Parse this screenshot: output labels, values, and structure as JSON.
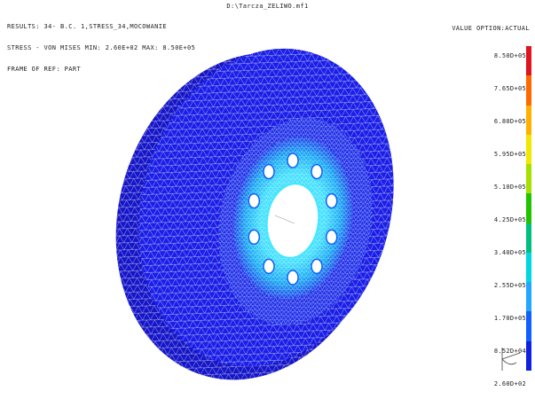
{
  "header": {
    "file_title": "D:\\Tarcza_ZELIWO.mf1",
    "lines": [
      "RESULTS: 34- B.C. 1,STRESS_34,MOCOWANIE",
      "STRESS - VON MISES MIN: 2.60E+02 MAX: 8.50E+05",
      "FRAME OF REF: PART"
    ],
    "value_option": "VALUE OPTION:ACTUAL"
  },
  "legend": {
    "values": [
      "8.50D+05",
      "7.65D+05",
      "6.80D+05",
      "5.95D+05",
      "5.10D+05",
      "4.25D+05",
      "3.40D+05",
      "2.55D+05",
      "1.70D+05",
      "8.52D+04",
      "2.60D+02"
    ],
    "colors": [
      "#e0141e",
      "#ff6a00",
      "#ffb000",
      "#f0e800",
      "#a6e000",
      "#22c400",
      "#00c080",
      "#00d8e0",
      "#20a8ff",
      "#1060ff",
      "#1020e0"
    ]
  },
  "model": {
    "disk_color": "#1a1ee6",
    "hub_color": "#10a0f0",
    "hole_count": 10
  }
}
